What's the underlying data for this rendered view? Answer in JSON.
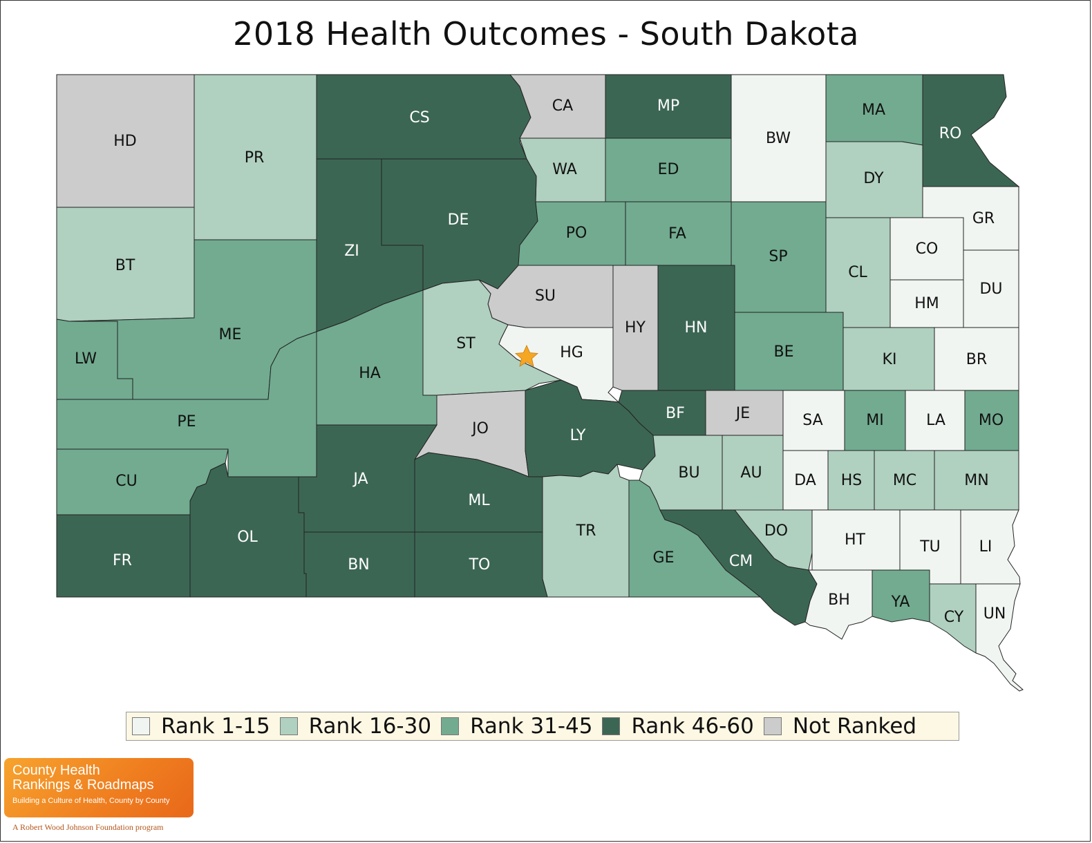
{
  "title": "2018 Health Outcomes - South Dakota",
  "colors": {
    "rank_1_15": "#f1f5f2",
    "rank_16_30": "#b0d0c0",
    "rank_31_45": "#72ab90",
    "rank_46_60": "#3c6654",
    "not_ranked": "#cccccc",
    "star": "#f5a623"
  },
  "legend": [
    {
      "key": "rank_1_15",
      "label": "Rank 1-15"
    },
    {
      "key": "rank_16_30",
      "label": "Rank 16-30"
    },
    {
      "key": "rank_31_45",
      "label": "Rank 31-45"
    },
    {
      "key": "rank_46_60",
      "label": "Rank 46-60"
    },
    {
      "key": "not_ranked",
      "label": "Not Ranked"
    }
  ],
  "counties": [
    {
      "label": "HD",
      "category": "not_ranked"
    },
    {
      "label": "PR",
      "category": "rank_16_30"
    },
    {
      "label": "CS",
      "category": "rank_46_60"
    },
    {
      "label": "CA",
      "category": "not_ranked"
    },
    {
      "label": "MP",
      "category": "rank_46_60"
    },
    {
      "label": "BW",
      "category": "rank_1_15"
    },
    {
      "label": "MA",
      "category": "rank_31_45"
    },
    {
      "label": "RO",
      "category": "rank_46_60"
    },
    {
      "label": "WA",
      "category": "rank_16_30"
    },
    {
      "label": "ED",
      "category": "rank_31_45"
    },
    {
      "label": "DY",
      "category": "rank_16_30"
    },
    {
      "label": "BT",
      "category": "rank_16_30"
    },
    {
      "label": "ZI",
      "category": "rank_46_60"
    },
    {
      "label": "DE",
      "category": "rank_46_60"
    },
    {
      "label": "PO",
      "category": "rank_31_45"
    },
    {
      "label": "FA",
      "category": "rank_31_45"
    },
    {
      "label": "SP",
      "category": "rank_31_45"
    },
    {
      "label": "CL",
      "category": "rank_16_30"
    },
    {
      "label": "GR",
      "category": "rank_1_15"
    },
    {
      "label": "CO",
      "category": "rank_1_15"
    },
    {
      "label": "HM",
      "category": "rank_1_15"
    },
    {
      "label": "DU",
      "category": "rank_1_15"
    },
    {
      "label": "SU",
      "category": "not_ranked"
    },
    {
      "label": "HY",
      "category": "not_ranked"
    },
    {
      "label": "HN",
      "category": "rank_46_60"
    },
    {
      "label": "ME",
      "category": "rank_31_45"
    },
    {
      "label": "LW",
      "category": "rank_31_45"
    },
    {
      "label": "ST",
      "category": "rank_16_30"
    },
    {
      "label": "HG",
      "category": "rank_1_15"
    },
    {
      "label": "BE",
      "category": "rank_31_45"
    },
    {
      "label": "KI",
      "category": "rank_16_30"
    },
    {
      "label": "BR",
      "category": "rank_1_15"
    },
    {
      "label": "HA",
      "category": "rank_31_45"
    },
    {
      "label": "PE",
      "category": "rank_31_45"
    },
    {
      "label": "JO",
      "category": "not_ranked"
    },
    {
      "label": "LY",
      "category": "rank_46_60"
    },
    {
      "label": "BF",
      "category": "rank_46_60"
    },
    {
      "label": "JE",
      "category": "not_ranked"
    },
    {
      "label": "SA",
      "category": "rank_1_15"
    },
    {
      "label": "MI",
      "category": "rank_31_45"
    },
    {
      "label": "LA",
      "category": "rank_1_15"
    },
    {
      "label": "MO",
      "category": "rank_31_45"
    },
    {
      "label": "CU",
      "category": "rank_31_45"
    },
    {
      "label": "JA",
      "category": "rank_46_60"
    },
    {
      "label": "ML",
      "category": "rank_46_60"
    },
    {
      "label": "BU",
      "category": "rank_16_30"
    },
    {
      "label": "AU",
      "category": "rank_16_30"
    },
    {
      "label": "DA",
      "category": "rank_1_15"
    },
    {
      "label": "HS",
      "category": "rank_16_30"
    },
    {
      "label": "MC",
      "category": "rank_16_30"
    },
    {
      "label": "MN",
      "category": "rank_16_30"
    },
    {
      "label": "OL",
      "category": "rank_46_60"
    },
    {
      "label": "TR",
      "category": "rank_16_30"
    },
    {
      "label": "DO",
      "category": "rank_16_30"
    },
    {
      "label": "HT",
      "category": "rank_1_15"
    },
    {
      "label": "TU",
      "category": "rank_1_15"
    },
    {
      "label": "LI",
      "category": "rank_1_15"
    },
    {
      "label": "FR",
      "category": "rank_46_60"
    },
    {
      "label": "BN",
      "category": "rank_46_60"
    },
    {
      "label": "TO",
      "category": "rank_46_60"
    },
    {
      "label": "GE",
      "category": "rank_31_45"
    },
    {
      "label": "CM",
      "category": "rank_46_60"
    },
    {
      "label": "BH",
      "category": "rank_1_15"
    },
    {
      "label": "YA",
      "category": "rank_31_45"
    },
    {
      "label": "CY",
      "category": "rank_16_30"
    },
    {
      "label": "UN",
      "category": "rank_1_15"
    }
  ],
  "marker": {
    "icon": "star-icon",
    "county": "HG"
  },
  "logo": {
    "line1": "County Health",
    "line2": "Rankings & Roadmaps",
    "tagline": "Building a Culture of Health, County by County",
    "program": "A Robert Wood Johnson Foundation program"
  }
}
